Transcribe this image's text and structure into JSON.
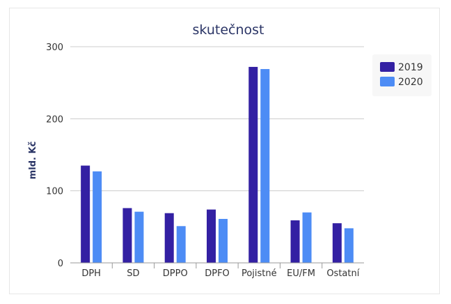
{
  "chart_data": {
    "type": "bar",
    "title": "skutečnost",
    "xlabel": "",
    "ylabel": "mld. Kč",
    "ylim": [
      0,
      300
    ],
    "yticks": [
      0,
      100,
      200,
      300
    ],
    "grid": true,
    "legend_position": "right",
    "categories": [
      "DPH",
      "SD",
      "DPPO",
      "DPFO",
      "Pojistné",
      "EU/FM",
      "Ostatní"
    ],
    "series": [
      {
        "name": "2019",
        "color": "#3320a3",
        "values": [
          135,
          76,
          69,
          74,
          272,
          59,
          55
        ]
      },
      {
        "name": "2020",
        "color": "#4d8cf5",
        "values": [
          127,
          71,
          51,
          61,
          269,
          70,
          48
        ]
      }
    ]
  }
}
